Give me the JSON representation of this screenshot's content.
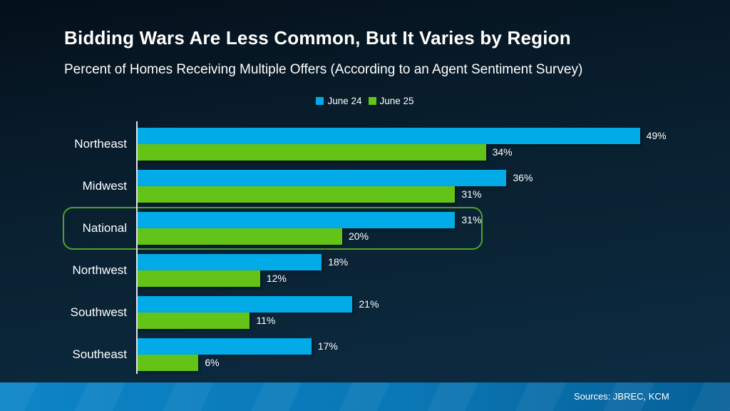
{
  "title": "Bidding Wars Are Less Common, But It Varies by Region",
  "subtitle": "Percent of Homes Receiving Multiple Offers (According to an Agent Sentiment Survey)",
  "legend": [
    {
      "label": "June 24",
      "color": "#00ABE8"
    },
    {
      "label": "June 25",
      "color": "#63C417"
    }
  ],
  "chart_data": {
    "type": "bar",
    "orientation": "horizontal",
    "title": "Percent of Homes Receiving Multiple Offers (According to an Agent Sentiment Survey)",
    "categories": [
      "Northeast",
      "Midwest",
      "National",
      "Northwest",
      "Southwest",
      "Southeast"
    ],
    "series": [
      {
        "name": "June 24",
        "color": "#00ABE8",
        "values": [
          49,
          36,
          31,
          18,
          21,
          17
        ]
      },
      {
        "name": "June 25",
        "color": "#63C417",
        "values": [
          34,
          31,
          20,
          12,
          11,
          6
        ]
      }
    ],
    "value_suffix": "%",
    "xlim": [
      0,
      50
    ],
    "grid": false,
    "legend_position": "top-center",
    "highlighted_category": "National",
    "highlight_color": "#4CA32B"
  },
  "footer": {
    "sources_label": "Sources: JBREC, KCM"
  },
  "colors": {
    "background_top": "#04101A",
    "background_bottom": "#0D2C44",
    "bar_blue": "#00ABE8",
    "bar_green": "#63C417",
    "axis_line": "#DCE6ED",
    "highlight_border": "#4CA32B",
    "footer_left": "#0C85C7",
    "footer_right": "#066098",
    "text": "#FFFFFF"
  }
}
